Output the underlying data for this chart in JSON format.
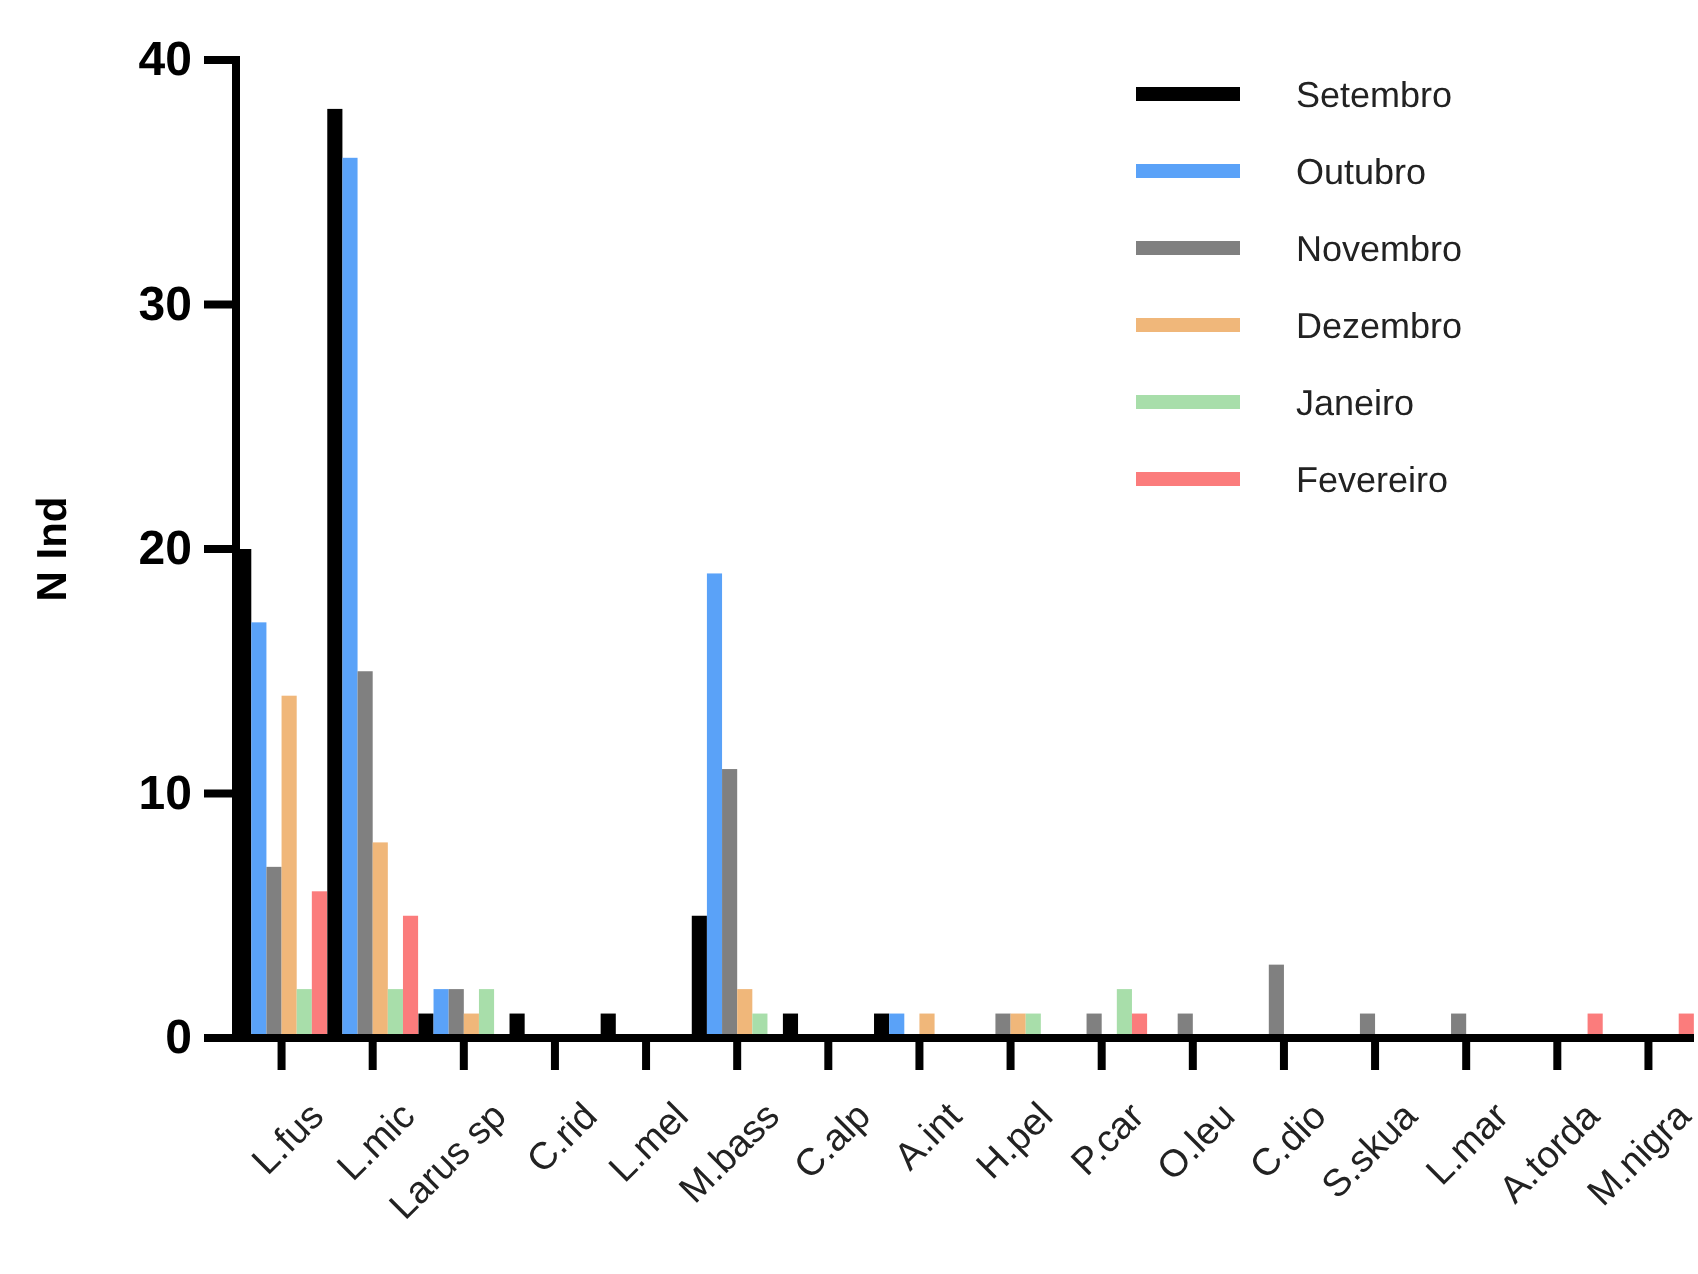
{
  "chart_data": {
    "type": "bar",
    "ylabel": "N Ind",
    "categories": [
      "L.fus",
      "L.mic",
      "Larus sp",
      "C.rid",
      "L.mel",
      "M.bass",
      "C.alp",
      "A.int",
      "H.pel",
      "P.car",
      "O.leu",
      "C.dio",
      "S.skua",
      "L.mar",
      "A.torda",
      "M.nigra"
    ],
    "series": [
      {
        "name": "Setembro",
        "color": "#000000",
        "values": [
          20,
          38,
          1,
          1,
          1,
          5,
          1,
          1,
          null,
          null,
          null,
          null,
          null,
          null,
          null,
          null
        ]
      },
      {
        "name": "Outubro",
        "color": "#5aa2f8",
        "values": [
          17,
          36,
          2,
          null,
          null,
          19,
          null,
          1,
          null,
          null,
          null,
          null,
          null,
          null,
          null,
          null
        ]
      },
      {
        "name": "Novembro",
        "color": "#808080",
        "values": [
          7,
          15,
          2,
          null,
          null,
          11,
          null,
          null,
          1,
          1,
          1,
          3,
          1,
          1,
          null,
          null
        ]
      },
      {
        "name": "Dezembro",
        "color": "#f0b77a",
        "values": [
          14,
          8,
          1,
          null,
          null,
          2,
          null,
          1,
          1,
          null,
          null,
          null,
          null,
          null,
          null,
          null
        ]
      },
      {
        "name": "Janeiro",
        "color": "#a8deaa",
        "values": [
          2,
          2,
          2,
          null,
          null,
          1,
          null,
          null,
          1,
          2,
          null,
          null,
          null,
          null,
          null,
          null
        ]
      },
      {
        "name": "Fevereiro",
        "color": "#fb7c7c",
        "values": [
          6,
          5,
          null,
          null,
          null,
          null,
          null,
          null,
          null,
          1,
          null,
          null,
          null,
          null,
          1,
          1
        ]
      }
    ],
    "ylim": [
      0,
      40
    ],
    "yticks": [
      0,
      10,
      20,
      30,
      40
    ],
    "grid": false,
    "legend": "top right"
  }
}
